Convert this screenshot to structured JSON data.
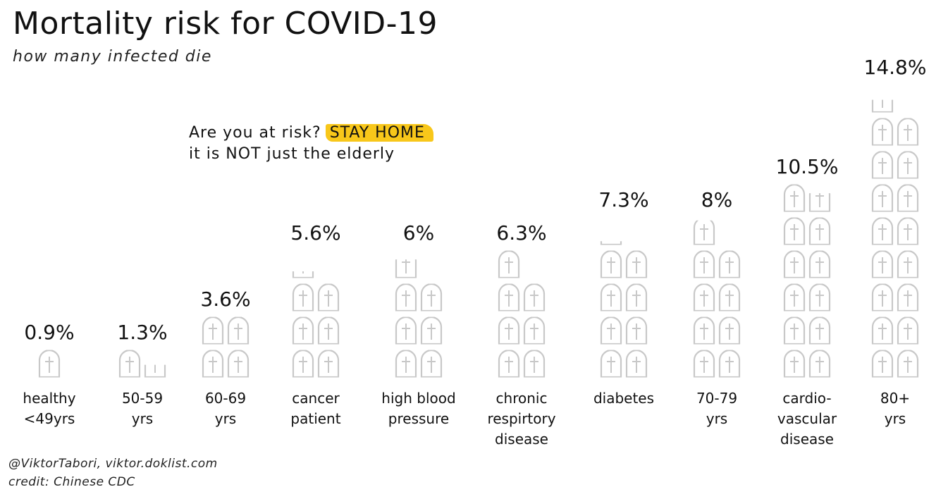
{
  "title": "Mortality risk for COVID-19",
  "subtitle": "how many infected die",
  "callout": {
    "line1_prefix": "Are you at risk?",
    "line1_highlight": "STAY HOME",
    "line2": "it is NOT just the elderly"
  },
  "credits": {
    "line1": "@ViktorTabori, viktor.doklist.com",
    "line2": "credit: Chinese CDC"
  },
  "colors": {
    "icon_stroke": "#c8c8c8",
    "highlight": "#f8c71a",
    "text": "#111111"
  },
  "chart_data": {
    "type": "bar",
    "icon": "tombstone-icon",
    "unit_per_icon_percent": 0.9,
    "categories": [
      [
        "healthy",
        "<49yrs"
      ],
      [
        "50-59",
        "yrs"
      ],
      [
        "60-69",
        "yrs"
      ],
      [
        "cancer",
        "patient"
      ],
      [
        "high blood",
        "pressure"
      ],
      [
        "chronic",
        "respirtory",
        "disease"
      ],
      [
        "diabetes"
      ],
      [
        "70-79",
        "yrs"
      ],
      [
        "cardio-",
        "vascular",
        "disease"
      ],
      [
        "80+",
        "yrs"
      ]
    ],
    "values": [
      0.9,
      1.3,
      3.6,
      5.6,
      6.0,
      6.3,
      7.3,
      8.0,
      10.5,
      14.8
    ],
    "value_labels": [
      "0.9%",
      "1.3%",
      "3.6%",
      "5.6%",
      "6%",
      "6.3%",
      "7.3%",
      "8%",
      "10.5%",
      "14.8%"
    ],
    "grid": false,
    "legend": "none"
  }
}
